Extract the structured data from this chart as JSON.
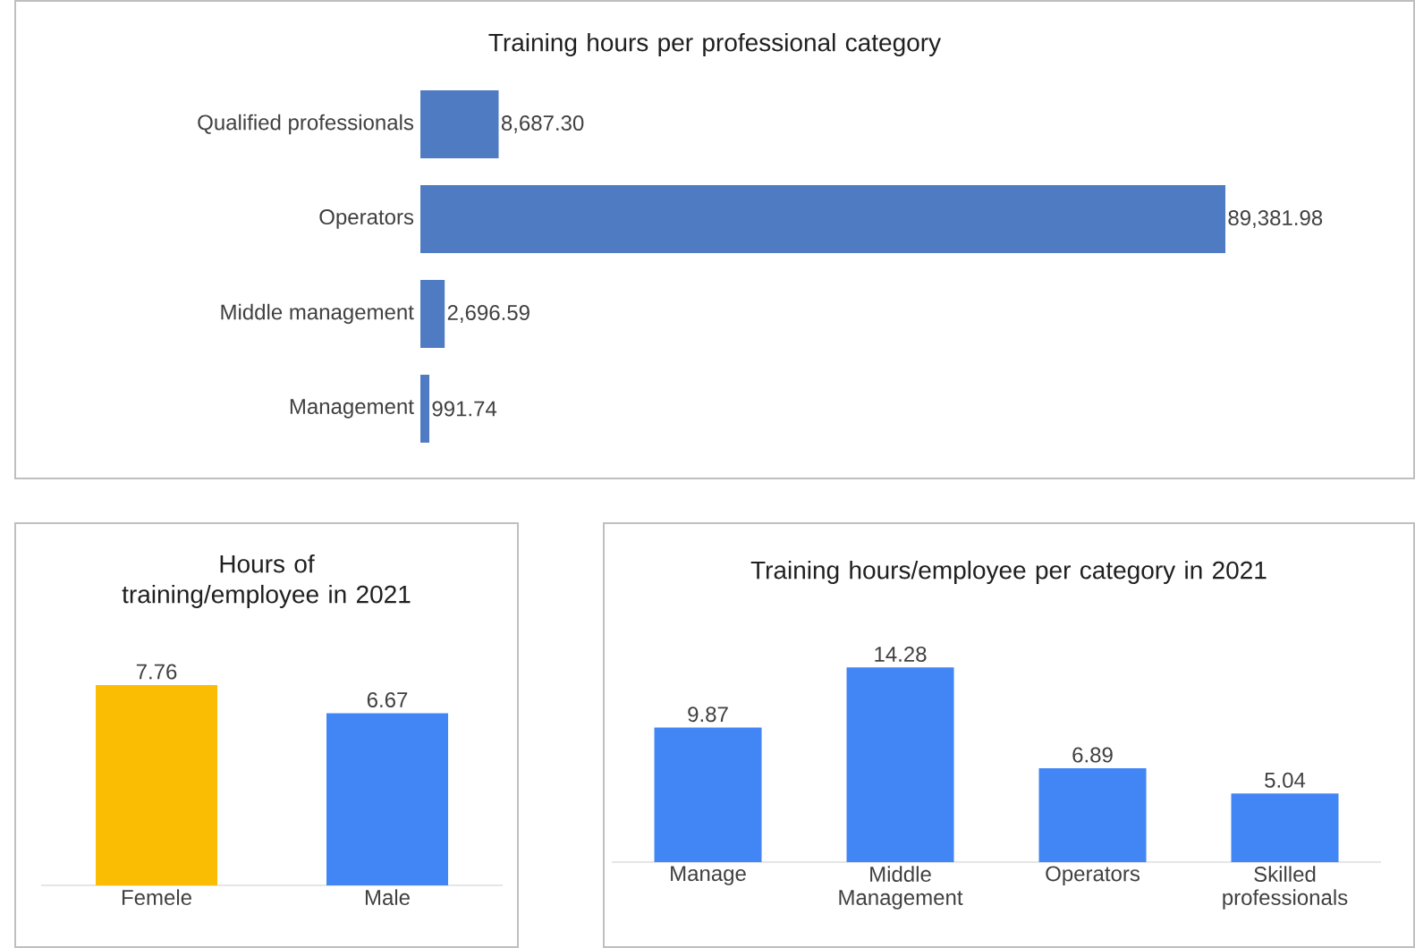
{
  "chart_data": [
    {
      "type": "bar",
      "orientation": "horizontal",
      "title": "Training hours per professional category",
      "categories": [
        "Qualified professionals",
        "Operators",
        "Middle management",
        "Management"
      ],
      "values": [
        8687.3,
        89381.98,
        2696.59,
        991.74
      ],
      "color": "#4f7bc3",
      "value_labels": [
        "8,687.30",
        "89,381.98",
        "2,696.59",
        "991.74"
      ]
    },
    {
      "type": "bar",
      "title": "Hours of training/employee in 2021",
      "categories": [
        "Femele",
        "Male"
      ],
      "values": [
        7.76,
        6.67
      ],
      "colors": [
        "#fbbc04",
        "#4285f4"
      ],
      "data_labels": true
    },
    {
      "type": "bar",
      "title": "Training hours/employee per category in 2021",
      "categories": [
        "Manage",
        "Middle Management",
        "Operators",
        "Skilled professionals"
      ],
      "values": [
        9.87,
        14.28,
        6.89,
        5.04
      ],
      "color": "#4285f4",
      "data_labels": true
    }
  ]
}
